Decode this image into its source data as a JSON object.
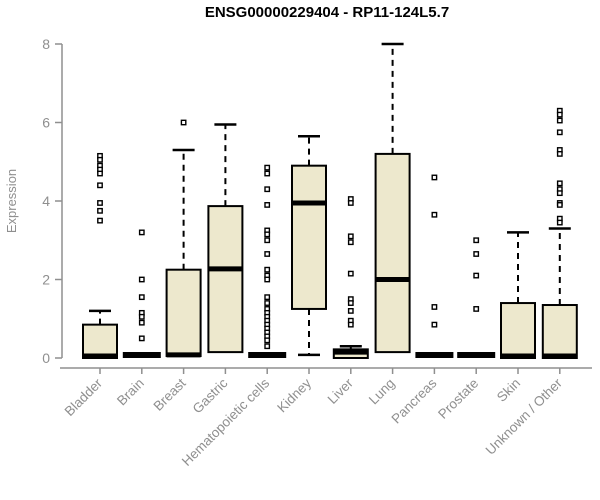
{
  "chart_data": {
    "type": "boxplot",
    "title": "ENSG00000229404 - RP11-124L5.7",
    "xlabel": "",
    "ylabel": "Expression",
    "ylim": [
      0,
      8
    ],
    "yticks": [
      0,
      2,
      4,
      6,
      8
    ],
    "grid": false,
    "legend": "none",
    "categories": [
      "Bladder",
      "Brain",
      "Breast",
      "Gastric",
      "Hematopoietic cells",
      "Kidney",
      "Liver",
      "Lung",
      "Pancreas",
      "Prostate",
      "Skin",
      "Unknown / Other"
    ],
    "boxes": [
      {
        "category": "Bladder",
        "flat": false,
        "q1": 0.0,
        "median": 0.05,
        "q3": 0.85,
        "whisker_low": 0.0,
        "whisker_high": 1.2,
        "outliers": [
          5.15,
          5.05,
          4.9,
          4.8,
          4.7,
          4.4,
          3.95,
          3.75,
          3.5
        ]
      },
      {
        "category": "Brain",
        "flat": true,
        "q1": 0.0,
        "median": 0.03,
        "q3": 0.05,
        "whisker_low": 0.0,
        "whisker_high": 0.05,
        "outliers": [
          3.2,
          2.0,
          1.55,
          1.15,
          1.05,
          0.9,
          0.5
        ]
      },
      {
        "category": "Breast",
        "flat": false,
        "q1": 0.05,
        "median": 0.08,
        "q3": 2.25,
        "whisker_low": 0.05,
        "whisker_high": 5.3,
        "outliers": [
          6.0
        ]
      },
      {
        "category": "Gastric",
        "flat": false,
        "q1": 0.15,
        "median": 2.27,
        "q3": 3.87,
        "whisker_low": 0.15,
        "whisker_high": 5.95,
        "outliers": []
      },
      {
        "category": "Hematopoietic cells",
        "flat": true,
        "q1": 0.0,
        "median": 0.03,
        "q3": 0.05,
        "whisker_low": 0.0,
        "whisker_high": 0.05,
        "outliers": [
          4.85,
          4.7,
          4.3,
          3.9,
          3.25,
          3.15,
          3.0,
          2.65,
          2.25,
          2.1,
          2.0,
          1.55,
          1.4,
          1.25,
          1.15,
          1.05,
          0.95,
          0.85,
          0.75,
          0.65,
          0.55,
          0.45,
          0.3
        ]
      },
      {
        "category": "Kidney",
        "flat": false,
        "q1": 1.25,
        "median": 3.95,
        "q3": 4.9,
        "whisker_low": 0.08,
        "whisker_high": 5.65,
        "outliers": []
      },
      {
        "category": "Liver",
        "flat": false,
        "q1": 0.0,
        "median": 0.15,
        "q3": 0.22,
        "whisker_low": 0.0,
        "whisker_high": 0.3,
        "outliers": [
          4.05,
          3.95,
          3.1,
          2.95,
          2.15,
          1.5,
          1.4,
          1.2,
          0.95,
          0.85
        ]
      },
      {
        "category": "Lung",
        "flat": false,
        "q1": 0.15,
        "median": 2.0,
        "q3": 5.2,
        "whisker_low": 0.15,
        "whisker_high": 8.0,
        "outliers": []
      },
      {
        "category": "Pancreas",
        "flat": true,
        "q1": 0.0,
        "median": 0.03,
        "q3": 0.05,
        "whisker_low": 0.0,
        "whisker_high": 0.05,
        "outliers": [
          4.6,
          3.65,
          1.3,
          0.85
        ]
      },
      {
        "category": "Prostate",
        "flat": true,
        "q1": 0.0,
        "median": 0.03,
        "q3": 0.05,
        "whisker_low": 0.0,
        "whisker_high": 0.05,
        "outliers": [
          3.0,
          2.65,
          2.1,
          1.25
        ]
      },
      {
        "category": "Skin",
        "flat": false,
        "q1": 0.0,
        "median": 0.05,
        "q3": 1.4,
        "whisker_low": 0.0,
        "whisker_high": 3.2,
        "outliers": []
      },
      {
        "category": "Unknown / Other",
        "flat": false,
        "q1": 0.0,
        "median": 0.05,
        "q3": 1.35,
        "whisker_low": 0.0,
        "whisker_high": 3.3,
        "outliers": [
          6.3,
          6.2,
          6.05,
          5.75,
          5.3,
          5.2,
          4.45,
          4.3,
          4.2,
          3.95,
          3.9,
          3.55,
          3.45
        ]
      }
    ],
    "colors": {
      "box_fill": "#EDE8CD",
      "box_border": "#000000",
      "median": "#000000",
      "whisker": "#000000",
      "outlier_border": "#000000",
      "outlier_fill": "#ffffff",
      "axis": "#8f8f8f",
      "tick_label": "#8f8f8f",
      "title": "#000000",
      "background": "#ffffff"
    }
  }
}
